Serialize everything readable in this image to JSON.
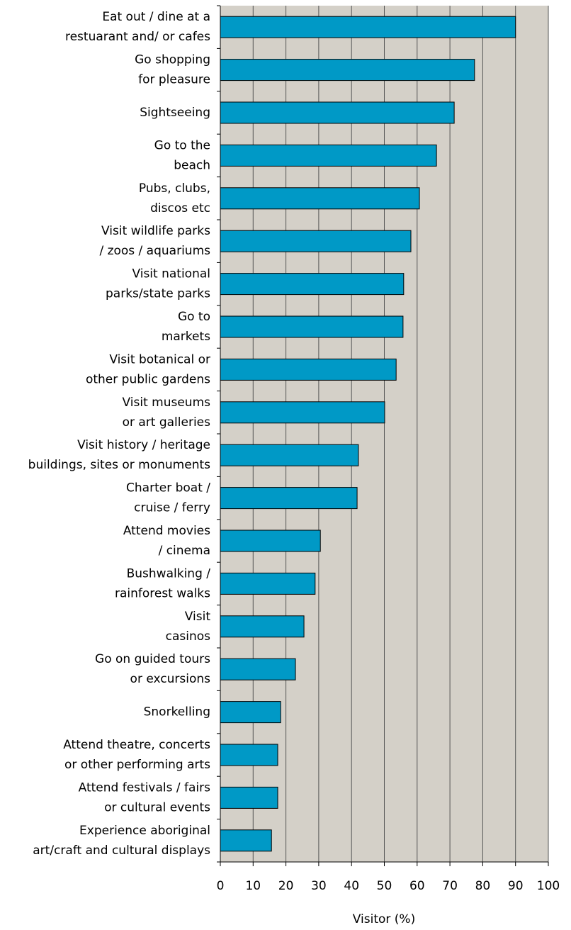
{
  "chart_data": {
    "type": "bar",
    "orientation": "horizontal",
    "x_label": "Visitor (%)",
    "categories": [
      [
        "Eat out / dine at a",
        "restuarant and/ or cafes"
      ],
      [
        "Go shopping",
        "for pleasure"
      ],
      [
        "Sightseeing"
      ],
      [
        "Go to the",
        "beach"
      ],
      [
        "Pubs, clubs,",
        "discos etc"
      ],
      [
        "Visit wildlife parks",
        "/ zoos / aquariums"
      ],
      [
        "Visit national",
        "parks/state parks"
      ],
      [
        "Go to",
        "markets"
      ],
      [
        "Visit botanical or",
        "other public gardens"
      ],
      [
        "Visit museums",
        "or art galleries"
      ],
      [
        "Visit history / heritage",
        "buildings, sites or monuments"
      ],
      [
        "Charter boat /",
        "cruise / ferry"
      ],
      [
        "Attend movies",
        "/ cinema"
      ],
      [
        "Bushwalking /",
        "rainforest walks"
      ],
      [
        "Visit",
        "casinos"
      ],
      [
        "Go on guided tours",
        "or excursions"
      ],
      [
        "Snorkelling"
      ],
      [
        "Attend theatre, concerts",
        "or other performing arts"
      ],
      [
        "Attend festivals / fairs",
        "or cultural events"
      ],
      [
        "Experience aboriginal",
        "art/craft and cultural displays"
      ]
    ],
    "values": [
      90,
      77.5,
      71.3,
      65.9,
      60.7,
      58.1,
      55.9,
      55.7,
      53.6,
      50.1,
      42.1,
      41.7,
      30.5,
      28.9,
      25.5,
      22.9,
      18.4,
      17.5,
      17.5,
      15.6
    ],
    "color": "#0099c6",
    "xlim": [
      0,
      100
    ],
    "xticks": [
      0,
      10,
      20,
      30,
      40,
      50,
      60,
      70,
      80,
      90,
      100
    ],
    "grid": true
  }
}
